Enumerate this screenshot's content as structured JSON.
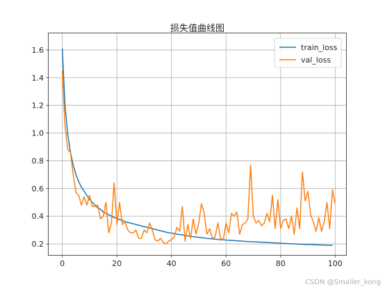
{
  "chart_data": {
    "type": "line",
    "title": "损失值曲线图",
    "xlabel": "",
    "ylabel": "",
    "xlim": [
      -5,
      104
    ],
    "ylim": [
      0.12,
      1.72
    ],
    "xticks": [
      0,
      20,
      40,
      60,
      80,
      100
    ],
    "yticks": [
      0.2,
      0.4,
      0.6,
      0.8,
      1.0,
      1.2,
      1.4,
      1.6
    ],
    "ytick_labels": [
      "0.2",
      "0.4",
      "0.6",
      "0.8",
      "1.0",
      "1.2",
      "1.4",
      "1.6"
    ],
    "grid": true,
    "legend_position": "top-right",
    "series": [
      {
        "name": "train_loss",
        "color": "#1f77b4",
        "values": [
          1.61,
          1.2,
          0.99,
          0.86,
          0.77,
          0.7,
          0.65,
          0.61,
          0.58,
          0.55,
          0.52,
          0.5,
          0.48,
          0.46,
          0.45,
          0.43,
          0.42,
          0.41,
          0.4,
          0.39,
          0.385,
          0.375,
          0.37,
          0.36,
          0.355,
          0.35,
          0.345,
          0.34,
          0.335,
          0.33,
          0.325,
          0.32,
          0.315,
          0.31,
          0.305,
          0.3,
          0.295,
          0.29,
          0.285,
          0.28,
          0.278,
          0.275,
          0.27,
          0.268,
          0.265,
          0.26,
          0.258,
          0.255,
          0.252,
          0.25,
          0.248,
          0.245,
          0.243,
          0.24,
          0.238,
          0.236,
          0.234,
          0.232,
          0.23,
          0.229,
          0.228,
          0.226,
          0.225,
          0.224,
          0.222,
          0.221,
          0.22,
          0.218,
          0.217,
          0.216,
          0.215,
          0.214,
          0.213,
          0.212,
          0.211,
          0.21,
          0.209,
          0.208,
          0.207,
          0.206,
          0.205,
          0.204,
          0.203,
          0.202,
          0.201,
          0.2,
          0.199,
          0.198,
          0.197,
          0.196,
          0.196,
          0.195,
          0.194,
          0.193,
          0.193,
          0.192,
          0.191,
          0.19,
          0.19,
          0.189
        ]
      },
      {
        "name": "val_loss",
        "color": "#ff7f0e",
        "values": [
          1.45,
          1.05,
          0.88,
          0.86,
          0.7,
          0.57,
          0.55,
          0.48,
          0.54,
          0.48,
          0.55,
          0.47,
          0.47,
          0.48,
          0.38,
          0.4,
          0.5,
          0.28,
          0.35,
          0.64,
          0.34,
          0.5,
          0.34,
          0.36,
          0.3,
          0.28,
          0.28,
          0.3,
          0.24,
          0.24,
          0.3,
          0.28,
          0.35,
          0.3,
          0.23,
          0.22,
          0.24,
          0.21,
          0.2,
          0.22,
          0.23,
          0.25,
          0.32,
          0.29,
          0.47,
          0.22,
          0.34,
          0.24,
          0.38,
          0.27,
          0.35,
          0.49,
          0.42,
          0.27,
          0.31,
          0.24,
          0.25,
          0.35,
          0.24,
          0.23,
          0.35,
          0.28,
          0.42,
          0.4,
          0.43,
          0.27,
          0.34,
          0.35,
          0.38,
          0.77,
          0.4,
          0.35,
          0.37,
          0.33,
          0.35,
          0.42,
          0.36,
          0.55,
          0.31,
          0.52,
          0.31,
          0.37,
          0.38,
          0.31,
          0.4,
          0.27,
          0.46,
          0.31,
          0.72,
          0.51,
          0.58,
          0.41,
          0.36,
          0.29,
          0.39,
          0.29,
          0.36,
          0.5,
          0.31,
          0.59,
          0.49
        ]
      }
    ]
  },
  "watermark": "CSDN @Smaller_kong"
}
